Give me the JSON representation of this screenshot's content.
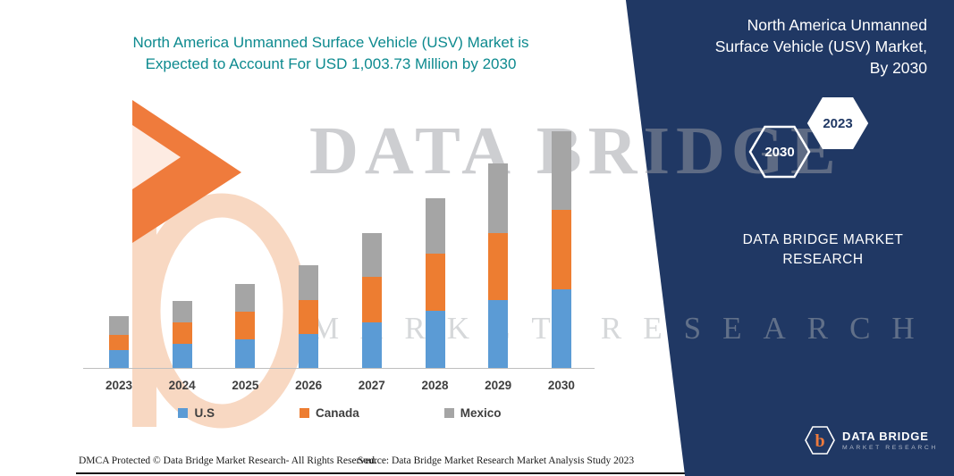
{
  "page": {
    "title_line1": "North America Unmanned Surface Vehicle (USV) Market is",
    "title_line2": "Expected to Account For USD 1,003.73 Million by 2030"
  },
  "watermark": {
    "line1": "DATA BRIDGE",
    "line2": "MARKET RESEARCH"
  },
  "chart_data": {
    "type": "bar",
    "stacked": true,
    "title": "North America Unmanned Surface Vehicle (USV) Market is Expected to Account For USD 1,003.73 Million by 2030",
    "unit": "USD Million",
    "categories": [
      "2023",
      "2024",
      "2025",
      "2026",
      "2027",
      "2028",
      "2029",
      "2030"
    ],
    "series": [
      {
        "name": "U.S",
        "color": "#5B9BD5",
        "values": [
          76,
          102,
          121,
          144,
          193,
          242,
          288,
          333
        ]
      },
      {
        "name": "Canada",
        "color": "#ED7D31",
        "values": [
          64,
          91,
          117,
          144,
          193,
          242,
          284,
          337
        ]
      },
      {
        "name": "Mexico",
        "color": "#A5A5A5",
        "values": [
          80,
          91,
          117,
          148,
          186,
          235,
          295,
          334
        ]
      }
    ],
    "total_2030": 1003.73,
    "ylim": [
      0,
      1100
    ],
    "grid": false,
    "legend_position": "bottom",
    "xlabel": "",
    "ylabel": ""
  },
  "side_panel": {
    "title_line1": "North America Unmanned",
    "title_line2": "Surface Vehicle (USV) Market,",
    "title_line3": "By 2030",
    "hex_back_label": "2023",
    "hex_front_label": "2030",
    "brand_line1": "DATA BRIDGE MARKET",
    "brand_line2": "RESEARCH",
    "logo_name": "DATA BRIDGE",
    "logo_sub": "MARKET RESEARCH",
    "logo_letter": "b"
  },
  "footer": {
    "dmca": "DMCA Protected © Data Bridge Market Research-  All Rights Reserved.",
    "source": "Source: Data Bridge Market Research  Market Analysis Study 2023"
  },
  "colors": {
    "navy": "#203864",
    "teal": "#0D8A8F",
    "us_blue": "#5B9BD5",
    "canada_orange": "#ED7D31",
    "mexico_gray": "#A5A5A5"
  }
}
